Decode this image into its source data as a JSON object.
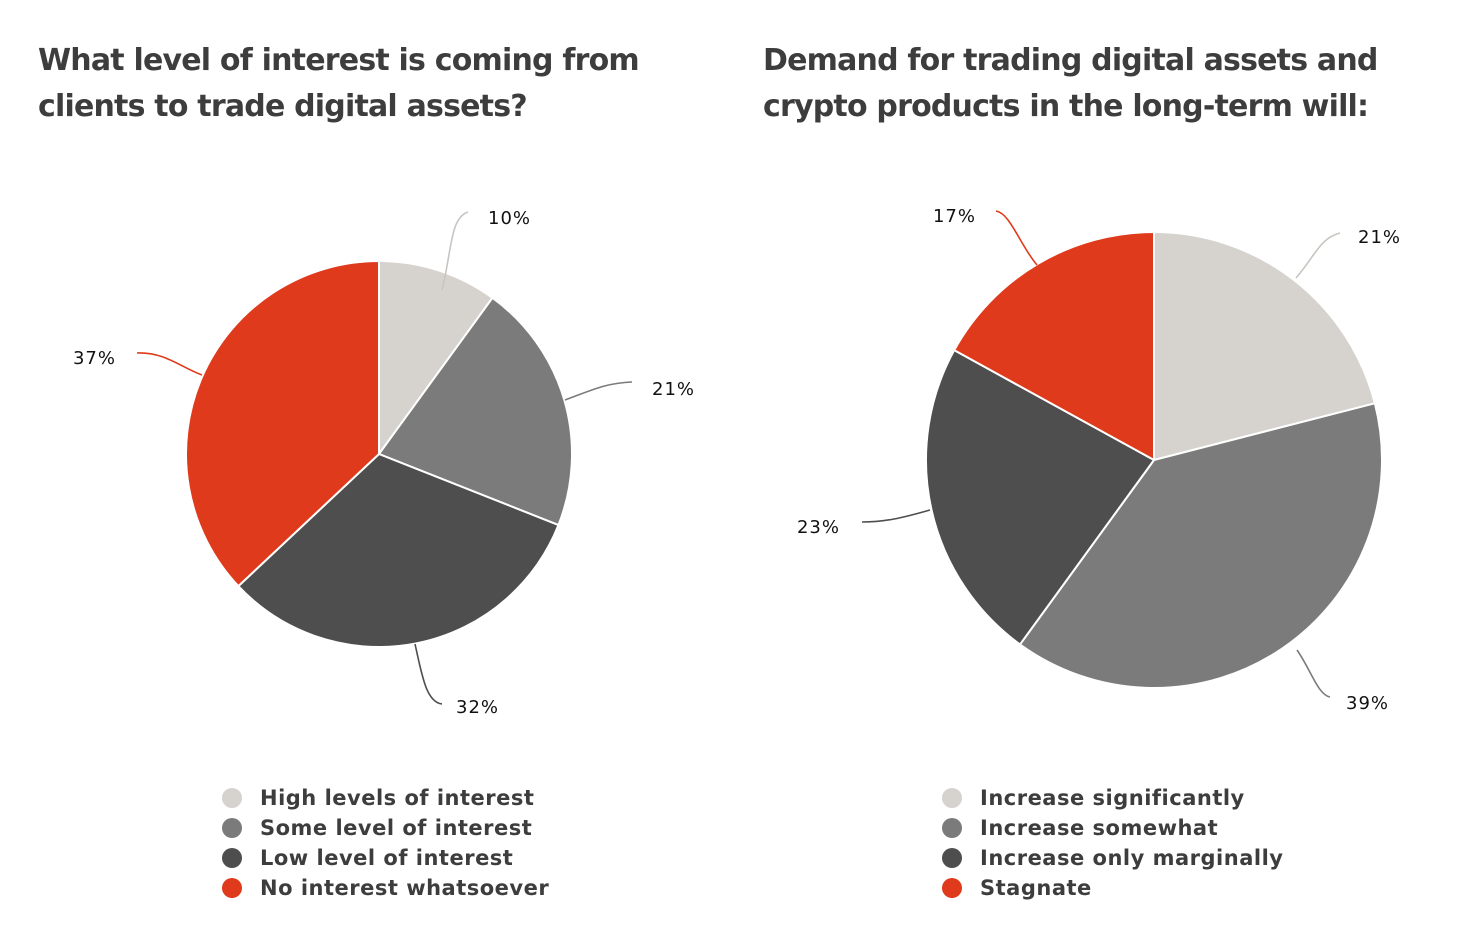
{
  "colors": {
    "light": "#d6d2ce",
    "mid": "#7b7b7b",
    "dark": "#4e4e4e",
    "accent": "#df3a1b",
    "text": "#3d3d3d",
    "label": "#111111"
  },
  "chart_data": [
    {
      "type": "pie",
      "title": "What level of interest is coming from clients to trade digital assets?",
      "slices": [
        {
          "name": "High levels of interest",
          "value": 10,
          "label": "10%",
          "color": "#d6d2ce"
        },
        {
          "name": "Some level of interest",
          "value": 21,
          "label": "21%",
          "color": "#7b7b7b"
        },
        {
          "name": "Low level of interest",
          "value": 32,
          "label": "32%",
          "color": "#4e4e4e"
        },
        {
          "name": "No interest whatsoever",
          "value": 37,
          "label": "37%",
          "color": "#df3a1b"
        }
      ],
      "legend_position": "bottom"
    },
    {
      "type": "pie",
      "title": "Demand for trading digital assets and crypto products in the long-term will:",
      "slices": [
        {
          "name": "Increase significantly",
          "value": 21,
          "label": "21%",
          "color": "#d6d2ce"
        },
        {
          "name": "Increase somewhat",
          "value": 39,
          "label": "39%",
          "color": "#7b7b7b"
        },
        {
          "name": "Increase only marginally",
          "value": 23,
          "label": "23%",
          "color": "#4e4e4e"
        },
        {
          "name": "Stagnate",
          "value": 17,
          "label": "17%",
          "color": "#df3a1b"
        }
      ],
      "legend_position": "bottom"
    }
  ]
}
